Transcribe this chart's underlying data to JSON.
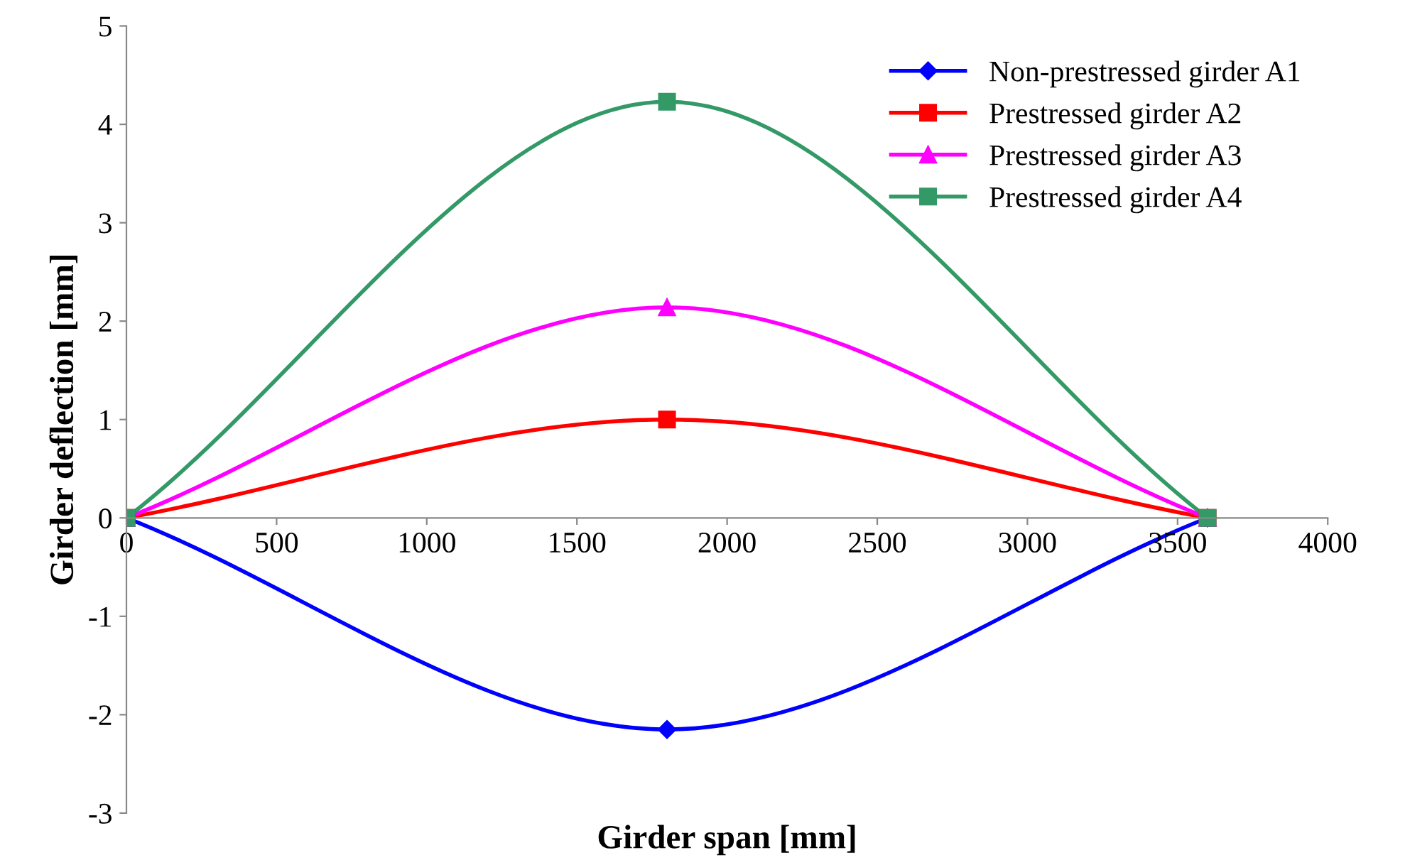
{
  "chart_data": {
    "type": "line",
    "xlabel": "Girder span [mm]",
    "ylabel": "Girder deflection [mm]",
    "x": [
      0,
      1800,
      3600
    ],
    "xlim": [
      0,
      4000
    ],
    "xticks": [
      0,
      500,
      1000,
      1500,
      2000,
      2500,
      3000,
      3500,
      4000
    ],
    "ylim": [
      -3,
      5
    ],
    "yticks": [
      -3,
      -2,
      -1,
      0,
      1,
      2,
      3,
      4,
      5
    ],
    "grid": false,
    "legend": "top right",
    "line_style": "solid",
    "series": [
      {
        "name": "Non-prestressed girder A1",
        "color": "#0000ff",
        "marker": "diamond",
        "values": [
          0,
          -2.15,
          0
        ]
      },
      {
        "name": "Prestressed girder A2",
        "color": "#ff0000",
        "marker": "square",
        "values": [
          0,
          1.0,
          0
        ]
      },
      {
        "name": "Prestressed girder A3",
        "color": "#ff00ff",
        "marker": "triangle",
        "values": [
          0,
          2.14,
          0
        ]
      },
      {
        "name": "Prestressed girder A4",
        "color": "#339966",
        "marker": "square",
        "values": [
          0,
          4.23,
          0
        ]
      }
    ]
  }
}
